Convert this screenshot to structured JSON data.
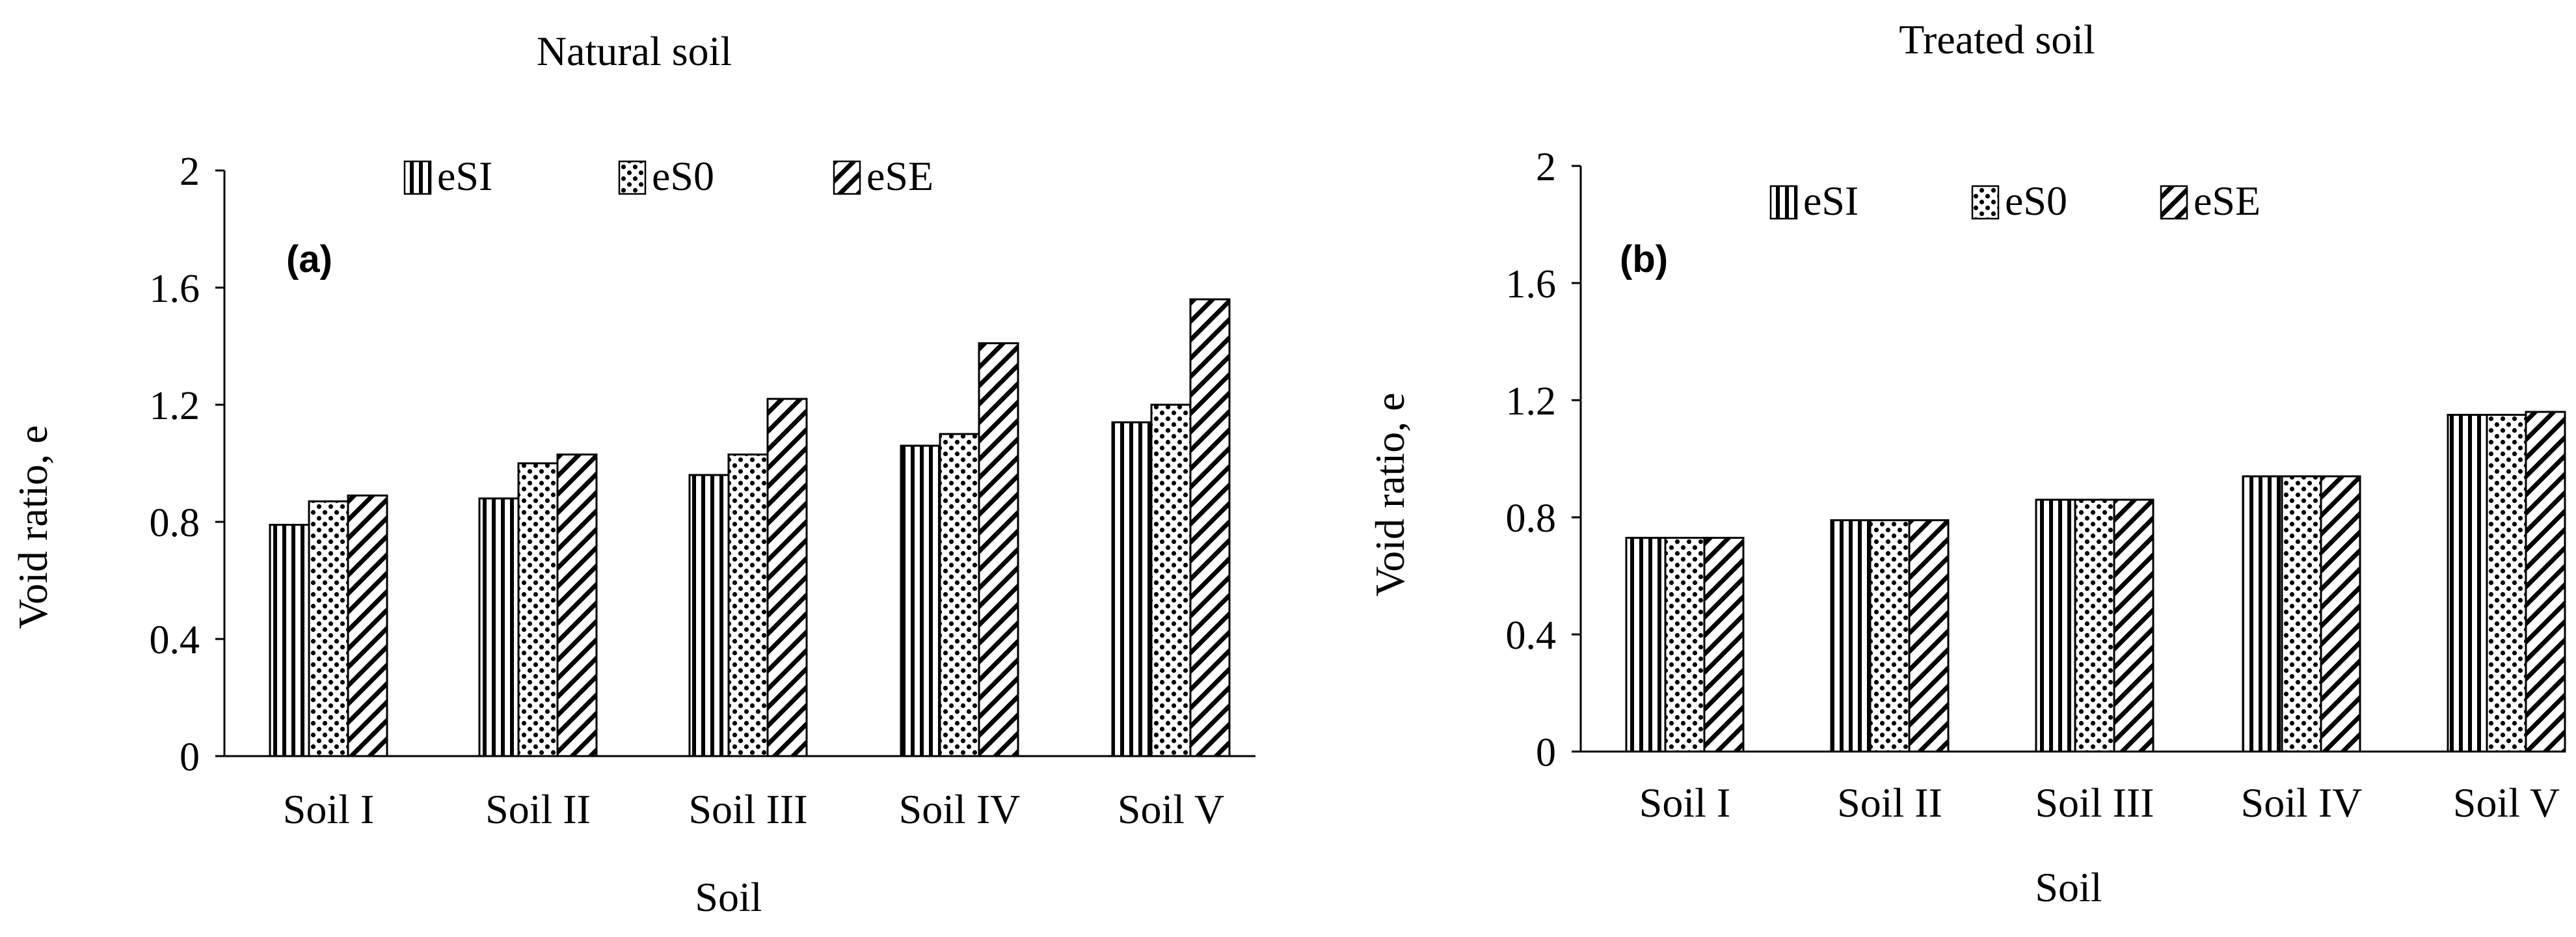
{
  "chart_data": [
    {
      "type": "bar",
      "title": "Natural soil",
      "panel_label": "(a)",
      "xlabel": "Soil",
      "ylabel": "Void ratio, e",
      "categories": [
        "Soil I",
        "Soil II",
        "Soil III",
        "Soil IV",
        "Soil V"
      ],
      "yticks": [
        "0",
        "0.4",
        "0.8",
        "1.2",
        "1.6",
        "2"
      ],
      "ylim": [
        0,
        2
      ],
      "legend_position": "top",
      "series": [
        {
          "name": "eSI",
          "pattern": "vertical-stripes",
          "values": [
            0.79,
            0.88,
            0.96,
            1.06,
            1.14
          ]
        },
        {
          "name": "eS0",
          "pattern": "dots",
          "values": [
            0.87,
            1.0,
            1.03,
            1.1,
            1.2
          ]
        },
        {
          "name": "eSE",
          "pattern": "diagonal-hatch",
          "values": [
            0.89,
            1.03,
            1.22,
            1.41,
            1.56
          ]
        }
      ]
    },
    {
      "type": "bar",
      "title": "Treated soil",
      "panel_label": "(b)",
      "xlabel": "Soil",
      "ylabel": "Void ratio, e",
      "categories": [
        "Soil I",
        "Soil II",
        "Soil III",
        "Soil IV",
        "Soil V"
      ],
      "yticks": [
        "0",
        "0.4",
        "0.8",
        "1.2",
        "1.6",
        "2"
      ],
      "ylim": [
        0,
        2
      ],
      "legend_position": "top",
      "series": [
        {
          "name": "eSI",
          "pattern": "vertical-stripes",
          "values": [
            0.73,
            0.79,
            0.86,
            0.94,
            1.15
          ]
        },
        {
          "name": "eS0",
          "pattern": "dots",
          "values": [
            0.73,
            0.79,
            0.86,
            0.94,
            1.15
          ]
        },
        {
          "name": "eSE",
          "pattern": "diagonal-hatch",
          "values": [
            0.73,
            0.79,
            0.86,
            0.94,
            1.16
          ]
        }
      ]
    }
  ]
}
